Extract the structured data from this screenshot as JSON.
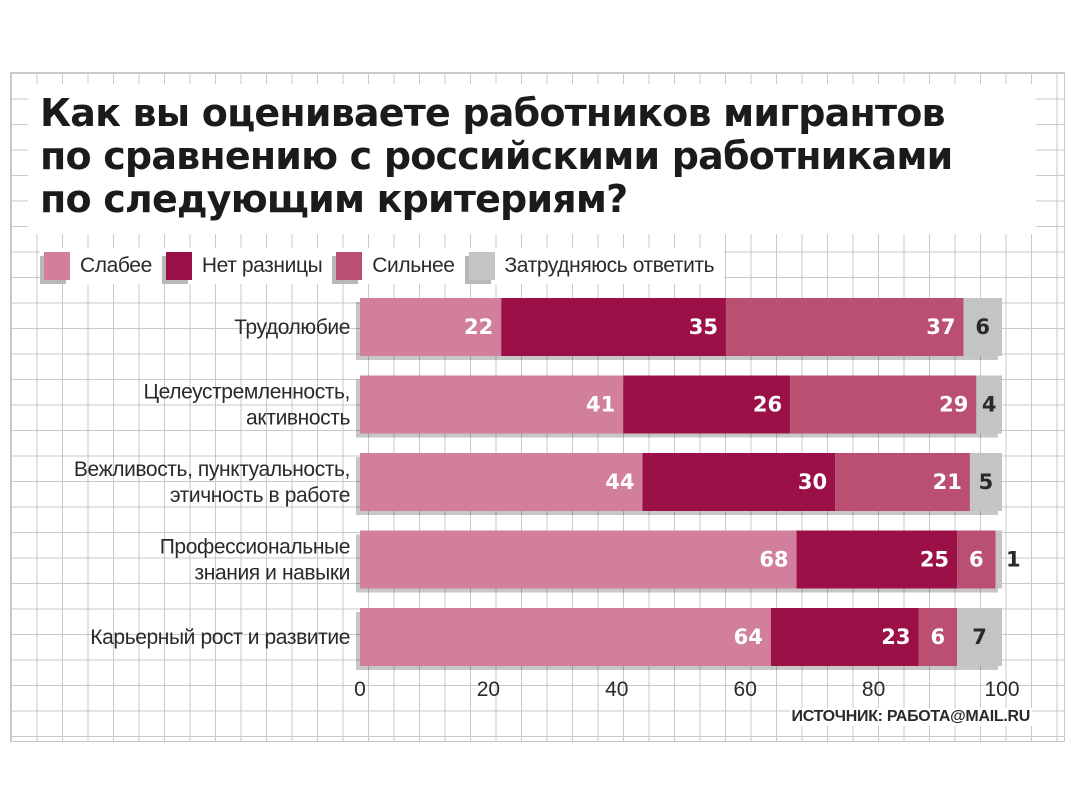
{
  "title": "Как вы оцениваете работников мигрантов\nпо сравнению с российскими работниками\nпо следующим критериям?",
  "source": "ИСТОЧНИК: РАБОТА@MAIL.RU",
  "legend": [
    {
      "label": "Слабее",
      "color": "#d17f9c"
    },
    {
      "label": "Нет разницы",
      "color": "#9c1048"
    },
    {
      "label": "Сильнее",
      "color": "#bb4f72"
    },
    {
      "label": "Затрудняюсь ответить",
      "color": "#c4c4c4"
    }
  ],
  "chart_data": {
    "type": "bar",
    "orientation": "horizontal",
    "stacked": true,
    "title": "Как вы оцениваете работников мигрантов по сравнению с российскими работниками по следующим критериям?",
    "categories": [
      [
        "Трудолюбие"
      ],
      [
        "Целеустремленность,",
        "активность"
      ],
      [
        "Вежливость, пунктуальность,",
        "этичность в работе"
      ],
      [
        "Профессиональные",
        "знания и навыки"
      ],
      [
        "Карьерный рост и развитие"
      ]
    ],
    "series": [
      {
        "name": "Слабее",
        "values": [
          22,
          41,
          44,
          68,
          64
        ],
        "color": "#d17f9c"
      },
      {
        "name": "Нет разницы",
        "values": [
          35,
          26,
          30,
          25,
          23
        ],
        "color": "#9c1048"
      },
      {
        "name": "Сильнее",
        "values": [
          37,
          29,
          21,
          6,
          6
        ],
        "color": "#bb4f72"
      },
      {
        "name": "Затрудняюсь ответить",
        "values": [
          6,
          4,
          5,
          1,
          7
        ],
        "color": "#c4c4c4"
      }
    ],
    "xlim": [
      0,
      100
    ],
    "xticks": [
      0,
      20,
      40,
      60,
      80,
      100
    ],
    "grid": true,
    "legend_position": "top-left"
  }
}
